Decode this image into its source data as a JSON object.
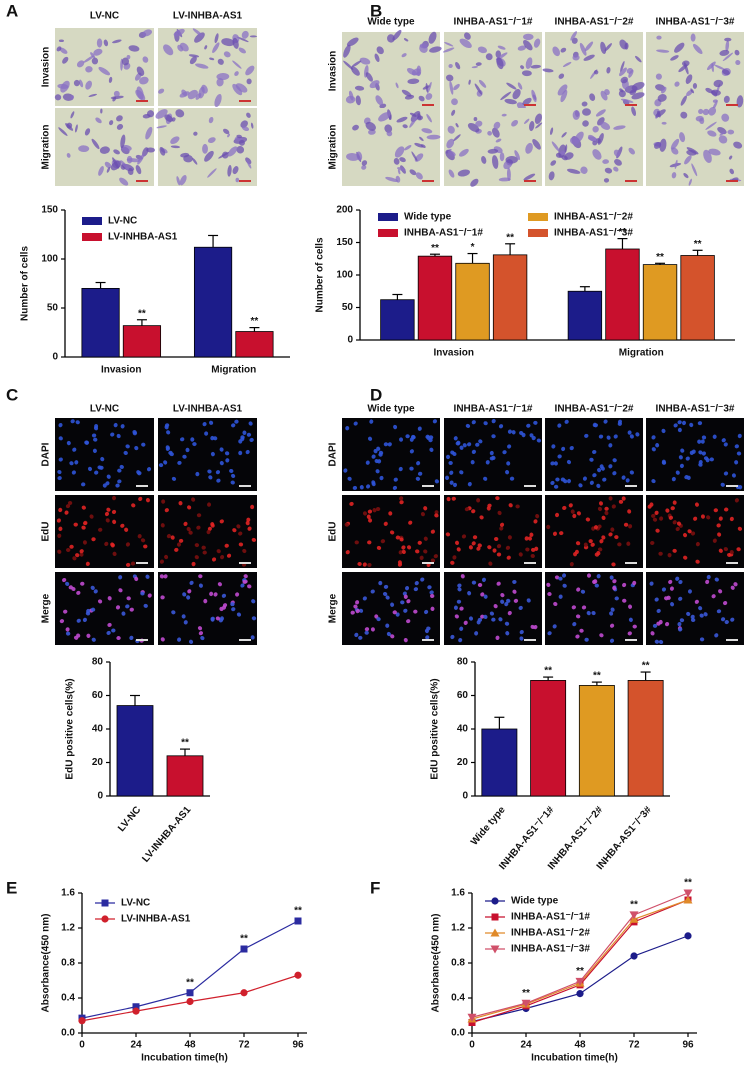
{
  "panel_labels": [
    "A",
    "B",
    "C",
    "D",
    "E",
    "F"
  ],
  "image_panels": [
    {
      "kind": "transwell",
      "columns": [
        "LV-NC",
        "LV-INHBA-AS1"
      ],
      "rows": [
        "Invasion",
        "Migration"
      ]
    },
    {
      "kind": "transwell",
      "columns": [
        "Wide type",
        "INHBA-AS1⁻/⁻1#",
        "INHBA-AS1⁻/⁻2#",
        "INHBA-AS1⁻/⁻3#"
      ],
      "rows": [
        "Invasion",
        "Migration"
      ]
    },
    {
      "kind": "fluorescence",
      "columns": [
        "LV-NC",
        "LV-INHBA-AS1"
      ],
      "rows": [
        "DAPI",
        "EdU",
        "Merge"
      ]
    },
    {
      "kind": "fluorescence",
      "columns": [
        "Wide type",
        "INHBA-AS1⁻/⁻1#",
        "INHBA-AS1⁻/⁻2#",
        "INHBA-AS1⁻/⁻3#"
      ],
      "rows": [
        "DAPI",
        "EdU",
        "Merge"
      ]
    }
  ],
  "chart_data": [
    {
      "type": "bar",
      "ylabel": "Number of cells",
      "categories": [
        "Invasion",
        "Migration"
      ],
      "series": [
        {
          "name": "LV-NC",
          "color": "#1c1c8a",
          "values": [
            70,
            112
          ],
          "errors": [
            6,
            12
          ]
        },
        {
          "name": "LV-INHBA-AS1",
          "color": "#c8102e",
          "values": [
            32,
            26
          ],
          "errors": [
            6,
            4
          ],
          "significance": [
            "**",
            "**"
          ]
        }
      ],
      "ylim": [
        0,
        150
      ],
      "yticks": [
        0,
        50,
        100,
        150
      ],
      "legend": "upper left"
    },
    {
      "type": "bar",
      "ylabel": "Number of cells",
      "categories": [
        "Invasion",
        "Migration"
      ],
      "series": [
        {
          "name": "Wide type",
          "color": "#1c1c8a",
          "values": [
            62,
            75
          ],
          "errors": [
            8,
            7
          ]
        },
        {
          "name": "INHBA-AS1⁻/⁻1#",
          "color": "#c8102e",
          "values": [
            129,
            140
          ],
          "errors": [
            3,
            16
          ],
          "significance": [
            "**",
            "**"
          ]
        },
        {
          "name": "INHBA-AS1⁻/⁻2#",
          "color": "#df9a22",
          "values": [
            118,
            116
          ],
          "errors": [
            15,
            2
          ],
          "significance": [
            "*",
            "**"
          ]
        },
        {
          "name": "INHBA-AS1⁻/⁻3#",
          "color": "#d4532c",
          "values": [
            131,
            130
          ],
          "errors": [
            17,
            8
          ],
          "significance": [
            "**",
            "**"
          ]
        }
      ],
      "ylim": [
        0,
        200
      ],
      "yticks": [
        0,
        50,
        100,
        150,
        200
      ],
      "legend": "upper left"
    },
    {
      "type": "bar",
      "ylabel": "EdU positive cells(%)",
      "categories": [
        "LV-NC",
        "LV-INHBA-AS1"
      ],
      "values": [
        54,
        24
      ],
      "errors": [
        6,
        4
      ],
      "colors": [
        "#1c1c8a",
        "#c8102e"
      ],
      "significance": [
        null,
        "**"
      ],
      "ylim": [
        0,
        80
      ],
      "yticks": [
        0,
        20,
        40,
        60,
        80
      ]
    },
    {
      "type": "bar",
      "ylabel": "EdU positive cells(%)",
      "categories": [
        "Wide type",
        "INHBA-AS1⁻/⁻1#",
        "INHBA-AS1⁻/⁻2#",
        "INHBA-AS1⁻/⁻3#"
      ],
      "values": [
        40,
        69,
        66,
        69
      ],
      "errors": [
        7,
        2,
        2,
        5
      ],
      "colors": [
        "#1c1c8a",
        "#c8102e",
        "#df9a22",
        "#d4532c"
      ],
      "significance": [
        null,
        "**",
        "**",
        "**"
      ],
      "ylim": [
        0,
        80
      ],
      "yticks": [
        0,
        20,
        40,
        60,
        80
      ]
    },
    {
      "type": "line",
      "xlabel": "Incubation time(h)",
      "ylabel": "Absorbance(450 nm)",
      "x": [
        0,
        24,
        48,
        72,
        96
      ],
      "series": [
        {
          "name": "LV-NC",
          "color": "#2b2ba0",
          "marker": "square",
          "values": [
            0.17,
            0.3,
            0.46,
            0.96,
            1.28
          ]
        },
        {
          "name": "LV-INHBA-AS1",
          "color": "#d0202c",
          "marker": "circle",
          "values": [
            0.14,
            0.25,
            0.36,
            0.46,
            0.66
          ]
        }
      ],
      "significance": [
        null,
        null,
        "**",
        "**",
        "**"
      ],
      "xlim": [
        0,
        100
      ],
      "xticks": [
        0,
        24,
        48,
        72,
        96
      ],
      "ylim": [
        0,
        1.6
      ],
      "yticks": [
        {
          "value": 0,
          "label": "0.0"
        },
        0.4,
        0.8,
        1.2,
        1.6
      ],
      "legend": "upper left"
    },
    {
      "type": "line",
      "xlabel": "Incubation time(h)",
      "ylabel": "Absorbance(450 nm)",
      "x": [
        0,
        24,
        48,
        72,
        96
      ],
      "series": [
        {
          "name": "Wide type",
          "color": "#1c1c8a",
          "marker": "circle",
          "values": [
            0.13,
            0.28,
            0.45,
            0.88,
            1.11
          ]
        },
        {
          "name": "INHBA-AS1⁻/⁻1#",
          "color": "#c8102e",
          "marker": "square",
          "values": [
            0.12,
            0.31,
            0.55,
            1.27,
            1.52
          ]
        },
        {
          "name": "INHBA-AS1⁻/⁻2#",
          "color": "#e08a2a",
          "marker": "triangle",
          "values": [
            0.16,
            0.33,
            0.57,
            1.3,
            1.52
          ]
        },
        {
          "name": "INHBA-AS1⁻/⁻3#",
          "color": "#d0506a",
          "marker": "triangle-down",
          "values": [
            0.18,
            0.34,
            0.59,
            1.35,
            1.6
          ]
        }
      ],
      "significance": [
        null,
        "**",
        "**",
        "**",
        "**"
      ],
      "xlim": [
        0,
        100
      ],
      "xticks": [
        0,
        24,
        48,
        72,
        96
      ],
      "ylim": [
        0,
        1.6
      ],
      "yticks": [
        {
          "value": 0,
          "label": "0.0"
        },
        0.4,
        0.8,
        1.2,
        1.6
      ],
      "legend": "upper left"
    }
  ]
}
